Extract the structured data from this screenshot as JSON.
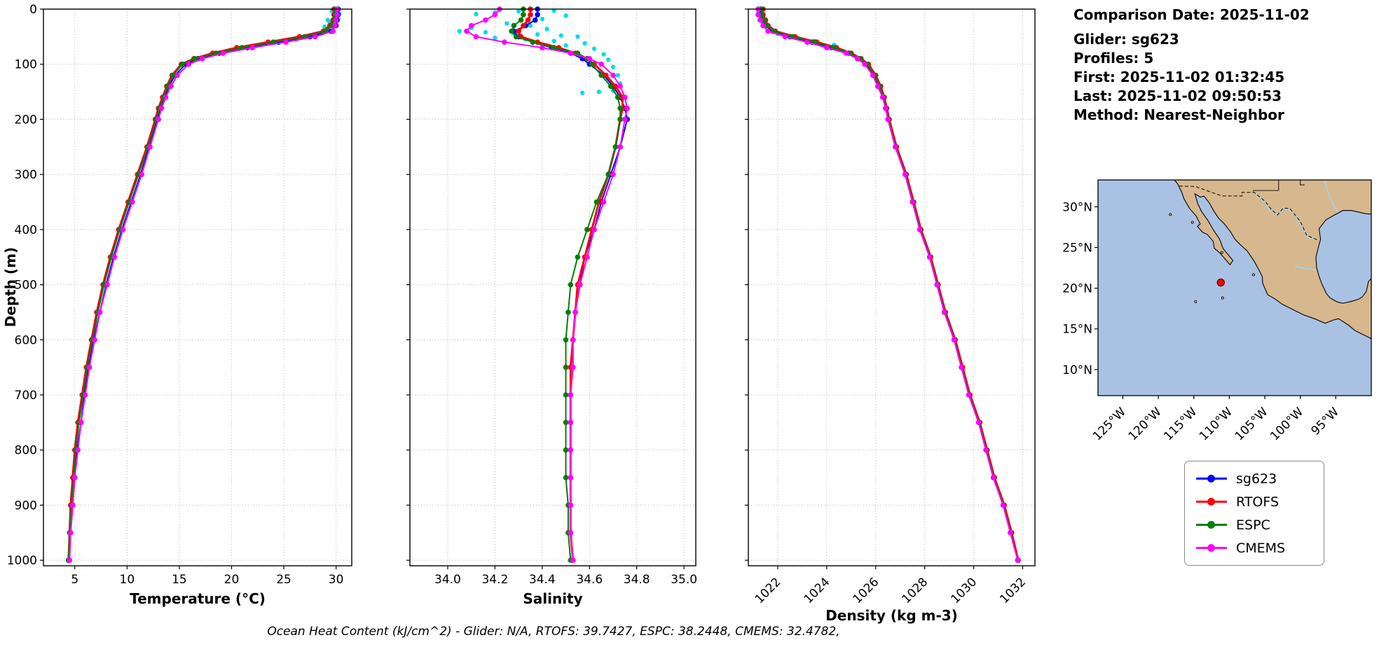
{
  "info_panel": {
    "comparison_date": "Comparison Date: 2025-11-02",
    "glider": "Glider: sg623",
    "profiles": "Profiles: 5",
    "first": "First: 2025-11-02 01:32:45",
    "last": "Last: 2025-11-02 09:50:53",
    "method": "Method: Nearest-Neighbor"
  },
  "footer": "Ocean Heat Content (kJ/cm^2) - Glider: N/A,  RTOFS: 39.7427,  ESPC: 38.2448,  CMEMS: 32.4782,",
  "legend": {
    "items": [
      {
        "label": "sg623",
        "color": "#0000ff"
      },
      {
        "label": "RTOFS",
        "color": "#ff0000"
      },
      {
        "label": "ESPC",
        "color": "#008000"
      },
      {
        "label": "CMEMS",
        "color": "#ff00ff"
      }
    ]
  },
  "chart_data": [
    {
      "type": "line",
      "id": "temperature",
      "xlabel": "Temperature (°C)",
      "ylabel": "Depth (m)",
      "xlim": [
        2,
        31.5
      ],
      "ylim": [
        0,
        1000
      ],
      "grid": true,
      "xticks": [
        5,
        10,
        15,
        20,
        25,
        30
      ],
      "xtick_labels": [
        "5",
        "10",
        "15",
        "20",
        "25",
        "30"
      ],
      "yticks": [
        0,
        100,
        200,
        300,
        400,
        500,
        600,
        700,
        800,
        900,
        1000
      ],
      "depths": [
        0,
        10,
        20,
        30,
        40,
        50,
        60,
        70,
        80,
        90,
        100,
        120,
        140,
        160,
        180,
        200,
        250,
        300,
        350,
        400,
        450,
        500,
        550,
        600,
        650,
        700,
        750,
        800,
        850,
        900,
        950,
        1000
      ],
      "series": [
        {
          "name": "sg623",
          "color": "#0000ff",
          "lw": 2,
          "values": [
            30.2,
            30.2,
            30.1,
            30.0,
            29.5,
            27.5,
            24.5,
            21.5,
            18.8,
            16.8,
            15.6,
            14.6,
            14.0,
            13.6,
            13.2,
            12.9,
            12.1,
            11.3,
            10.4,
            9.5,
            8.7,
            8.0,
            7.4,
            6.8,
            6.3,
            5.9,
            5.6,
            5.2,
            5.0,
            4.8,
            4.6,
            4.4
          ]
        },
        {
          "name": "RTOFS",
          "color": "#ff0000",
          "lw": 3,
          "values": [
            29.8,
            29.8,
            29.7,
            29.4,
            28.8,
            26.5,
            23.5,
            20.5,
            18.2,
            16.4,
            15.2,
            14.3,
            13.8,
            13.4,
            13.0,
            12.7,
            11.9,
            11.0,
            10.1,
            9.2,
            8.4,
            7.7,
            7.1,
            6.6,
            6.1,
            5.7,
            5.3,
            5.0,
            4.8,
            4.6,
            4.5,
            4.4
          ]
        },
        {
          "name": "ESPC",
          "color": "#008000",
          "lw": 2,
          "values": [
            29.9,
            29.9,
            29.8,
            29.6,
            29.0,
            27.0,
            24.0,
            21.0,
            18.5,
            16.5,
            15.3,
            14.4,
            13.9,
            13.5,
            13.1,
            12.8,
            12.0,
            11.1,
            10.2,
            9.3,
            8.5,
            7.8,
            7.2,
            6.7,
            6.2,
            5.8,
            5.4,
            5.1,
            4.9,
            4.7,
            4.5,
            4.4
          ]
        },
        {
          "name": "CMEMS",
          "color": "#ff00ff",
          "lw": 2,
          "values": [
            30.1,
            30.1,
            30.0,
            29.9,
            29.7,
            28.0,
            25.2,
            22.0,
            19.2,
            17.2,
            15.9,
            14.8,
            14.2,
            13.7,
            13.3,
            13.0,
            12.2,
            11.4,
            10.5,
            9.6,
            8.8,
            8.1,
            7.4,
            6.9,
            6.4,
            6.0,
            5.6,
            5.3,
            5.0,
            4.8,
            4.6,
            4.5
          ]
        }
      ],
      "scatter": {
        "name": "glider-raw",
        "color": "#00dde8",
        "points": [
          [
            29.6,
            3
          ],
          [
            30.0,
            6
          ],
          [
            29.9,
            12
          ],
          [
            30.2,
            18
          ],
          [
            29.4,
            25
          ],
          [
            28.9,
            32
          ],
          [
            29.1,
            38
          ],
          [
            28.4,
            44
          ],
          [
            27.6,
            50
          ],
          [
            26.2,
            55
          ],
          [
            30.3,
            8
          ],
          [
            29.2,
            20
          ]
        ]
      }
    },
    {
      "type": "line",
      "id": "salinity",
      "xlabel": "Salinity",
      "ylabel": "Depth (m)",
      "xlim": [
        33.84,
        35.05
      ],
      "ylim": [
        0,
        1000
      ],
      "grid": true,
      "xticks": [
        34.0,
        34.2,
        34.4,
        34.6,
        34.8,
        35.0
      ],
      "xtick_labels": [
        "34.0",
        "34.2",
        "34.4",
        "34.6",
        "34.8",
        "35.0"
      ],
      "yticks": [
        0,
        100,
        200,
        300,
        400,
        500,
        600,
        700,
        800,
        900,
        1000
      ],
      "depths": [
        0,
        10,
        20,
        30,
        40,
        50,
        60,
        70,
        80,
        90,
        100,
        120,
        140,
        160,
        180,
        200,
        250,
        300,
        350,
        400,
        450,
        500,
        550,
        600,
        650,
        700,
        750,
        800,
        850,
        900,
        950,
        1000
      ],
      "series": [
        {
          "name": "sg623",
          "color": "#0000ff",
          "lw": 2,
          "values": [
            34.38,
            34.38,
            34.37,
            34.33,
            34.28,
            34.3,
            34.36,
            34.44,
            34.52,
            34.57,
            34.6,
            34.66,
            34.7,
            34.73,
            34.75,
            34.76,
            34.73,
            34.69,
            34.65,
            34.62,
            34.58,
            34.56,
            34.54,
            34.53,
            34.53,
            34.52,
            34.52,
            34.52,
            34.52,
            34.52,
            34.52,
            34.53
          ]
        },
        {
          "name": "RTOFS",
          "color": "#ff0000",
          "lw": 3,
          "values": [
            34.35,
            34.35,
            34.34,
            34.32,
            34.3,
            34.31,
            34.38,
            34.47,
            34.54,
            34.59,
            34.62,
            34.67,
            34.71,
            34.74,
            34.74,
            34.73,
            34.71,
            34.68,
            34.64,
            34.61,
            34.58,
            34.55,
            34.54,
            34.53,
            34.52,
            34.52,
            34.52,
            34.52,
            34.52,
            34.52,
            34.52,
            34.53
          ]
        },
        {
          "name": "ESPC",
          "color": "#008000",
          "lw": 2,
          "values": [
            34.32,
            34.32,
            34.31,
            34.28,
            34.27,
            34.29,
            34.36,
            34.45,
            34.55,
            34.59,
            34.61,
            34.65,
            34.69,
            34.72,
            34.73,
            34.73,
            34.71,
            34.68,
            34.63,
            34.59,
            34.55,
            34.52,
            34.51,
            34.5,
            34.5,
            34.5,
            34.5,
            34.5,
            34.5,
            34.51,
            34.51,
            34.52
          ]
        },
        {
          "name": "CMEMS",
          "color": "#ff00ff",
          "lw": 2,
          "values": [
            34.22,
            34.2,
            34.16,
            34.1,
            34.08,
            34.12,
            34.24,
            34.4,
            34.52,
            34.6,
            34.65,
            34.7,
            34.73,
            34.75,
            34.76,
            34.75,
            34.73,
            34.7,
            34.66,
            34.62,
            34.59,
            34.56,
            34.54,
            34.53,
            34.53,
            34.52,
            34.52,
            34.52,
            34.52,
            34.52,
            34.52,
            34.53
          ]
        }
      ],
      "scatter": {
        "name": "glider-raw",
        "color": "#00dde8",
        "points": [
          [
            34.45,
            3
          ],
          [
            34.3,
            4
          ],
          [
            34.2,
            6
          ],
          [
            34.12,
            9
          ],
          [
            34.5,
            12
          ],
          [
            34.4,
            18
          ],
          [
            34.25,
            26
          ],
          [
            34.1,
            34
          ],
          [
            34.05,
            40
          ],
          [
            34.16,
            42
          ],
          [
            34.28,
            44
          ],
          [
            34.38,
            46
          ],
          [
            34.48,
            48
          ],
          [
            34.55,
            50
          ],
          [
            34.2,
            52
          ],
          [
            34.33,
            55
          ],
          [
            34.45,
            58
          ],
          [
            34.58,
            62
          ],
          [
            34.5,
            66
          ],
          [
            34.62,
            72
          ],
          [
            34.66,
            82
          ],
          [
            34.68,
            92
          ],
          [
            34.7,
            105
          ],
          [
            34.72,
            120
          ],
          [
            34.73,
            135
          ],
          [
            34.7,
            148
          ],
          [
            34.64,
            150
          ],
          [
            34.57,
            152
          ],
          [
            34.35,
            30
          ],
          [
            34.42,
            36
          ]
        ]
      }
    },
    {
      "type": "line",
      "id": "density",
      "xlabel": "Density (kg m-3)",
      "ylabel": "Depth (m)",
      "xlim": [
        1020.8,
        1032.5
      ],
      "ylim": [
        0,
        1000
      ],
      "grid": true,
      "xticks": [
        1022,
        1024,
        1026,
        1028,
        1030,
        1032
      ],
      "xtick_labels": [
        "1022",
        "1024",
        "1026",
        "1028",
        "1030",
        "1032"
      ],
      "yticks": [
        0,
        100,
        200,
        300,
        400,
        500,
        600,
        700,
        800,
        900,
        1000
      ],
      "depths": [
        0,
        10,
        20,
        30,
        40,
        50,
        60,
        70,
        80,
        90,
        100,
        120,
        140,
        160,
        180,
        200,
        250,
        300,
        350,
        400,
        450,
        500,
        550,
        600,
        650,
        700,
        750,
        800,
        850,
        900,
        950,
        1000
      ],
      "series": [
        {
          "name": "sg623",
          "color": "#0000ff",
          "lw": 2,
          "values": [
            1021.3,
            1021.3,
            1021.4,
            1021.5,
            1021.8,
            1022.5,
            1023.4,
            1024.2,
            1024.9,
            1025.3,
            1025.6,
            1025.9,
            1026.1,
            1026.3,
            1026.4,
            1026.5,
            1026.8,
            1027.2,
            1027.5,
            1027.8,
            1028.2,
            1028.5,
            1028.8,
            1029.2,
            1029.5,
            1029.8,
            1030.2,
            1030.5,
            1030.8,
            1031.2,
            1031.5,
            1031.8
          ]
        },
        {
          "name": "RTOFS",
          "color": "#ff0000",
          "lw": 3,
          "values": [
            1021.4,
            1021.4,
            1021.5,
            1021.6,
            1021.9,
            1022.7,
            1023.6,
            1024.4,
            1025.0,
            1025.4,
            1025.7,
            1026.0,
            1026.2,
            1026.35,
            1026.45,
            1026.55,
            1026.85,
            1027.25,
            1027.55,
            1027.85,
            1028.25,
            1028.55,
            1028.85,
            1029.25,
            1029.55,
            1029.85,
            1030.25,
            1030.55,
            1030.85,
            1031.25,
            1031.55,
            1031.82
          ]
        },
        {
          "name": "ESPC",
          "color": "#008000",
          "lw": 2,
          "values": [
            1021.35,
            1021.35,
            1021.45,
            1021.55,
            1021.85,
            1022.6,
            1023.5,
            1024.3,
            1024.95,
            1025.35,
            1025.65,
            1025.95,
            1026.15,
            1026.32,
            1026.42,
            1026.52,
            1026.82,
            1027.22,
            1027.52,
            1027.82,
            1028.22,
            1028.52,
            1028.82,
            1029.22,
            1029.52,
            1029.82,
            1030.22,
            1030.52,
            1030.82,
            1031.22,
            1031.52,
            1031.8
          ]
        },
        {
          "name": "CMEMS",
          "color": "#ff00ff",
          "lw": 2,
          "values": [
            1021.2,
            1021.2,
            1021.3,
            1021.4,
            1021.6,
            1022.3,
            1023.2,
            1024.0,
            1024.8,
            1025.25,
            1025.55,
            1025.88,
            1026.08,
            1026.28,
            1026.4,
            1026.5,
            1026.8,
            1027.2,
            1027.5,
            1027.8,
            1028.2,
            1028.5,
            1028.8,
            1029.2,
            1029.5,
            1029.8,
            1030.2,
            1030.5,
            1030.8,
            1031.2,
            1031.5,
            1031.8
          ]
        }
      ],
      "scatter": {
        "name": "glider-raw",
        "color": "#00dde8",
        "points": [
          [
            1021.3,
            3
          ],
          [
            1021.2,
            8
          ],
          [
            1021.4,
            15
          ],
          [
            1021.5,
            25
          ],
          [
            1021.7,
            35
          ],
          [
            1022.0,
            45
          ],
          [
            1022.8,
            52
          ],
          [
            1023.5,
            58
          ],
          [
            1024.3,
            65
          ],
          [
            1021.25,
            20
          ]
        ]
      }
    }
  ],
  "map": {
    "extent": {
      "lon_min": -128.5,
      "lon_max": -90,
      "lat_min": 6.8,
      "lat_max": 33.3
    },
    "lat_ticks": [
      {
        "value": 10,
        "label": "10°N"
      },
      {
        "value": 15,
        "label": "15°N"
      },
      {
        "value": 20,
        "label": "20°N"
      },
      {
        "value": 25,
        "label": "25°N"
      },
      {
        "value": 30,
        "label": "30°N"
      }
    ],
    "lon_ticks": [
      {
        "value": -125,
        "label": "125°W"
      },
      {
        "value": -120,
        "label": "120°W"
      },
      {
        "value": -115,
        "label": "115°W"
      },
      {
        "value": -110,
        "label": "110°W"
      },
      {
        "value": -105,
        "label": "105°W"
      },
      {
        "value": -100,
        "label": "100°W"
      },
      {
        "value": -95,
        "label": "95°W"
      }
    ],
    "marker": {
      "lon": -111.2,
      "lat": 20.7,
      "color": "#ff0000"
    },
    "colors": {
      "ocean": "#a9c2e4",
      "land": "#d7b78d",
      "coast": "#000000",
      "river": "#9fd4ef"
    }
  }
}
